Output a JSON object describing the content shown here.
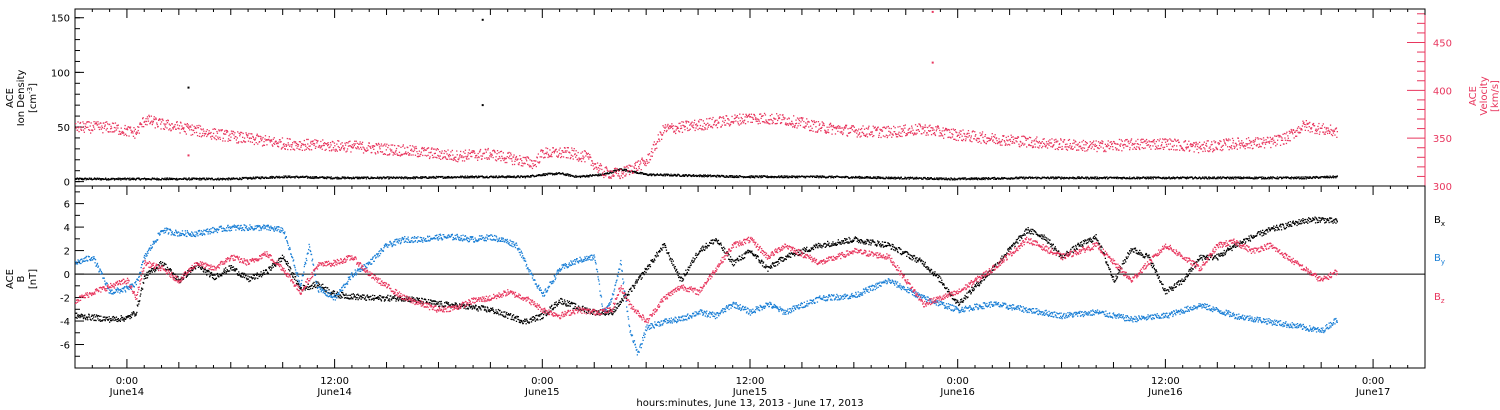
{
  "figure": {
    "xlabel": "hours:minutes, June 13, 2013 - June 17, 2013",
    "x_ticks": [
      {
        "t": 0,
        "time": "0:00",
        "date": "June14"
      },
      {
        "t": 12,
        "time": "12:00",
        "date": "June14"
      },
      {
        "t": 24,
        "time": "0:00",
        "date": "June15"
      },
      {
        "t": 36,
        "time": "12:00",
        "date": "June15"
      },
      {
        "t": 48,
        "time": "0:00",
        "date": "June16"
      },
      {
        "t": 60,
        "time": "12:00",
        "date": "June16"
      },
      {
        "t": 72,
        "time": "0:00",
        "date": "June17"
      }
    ]
  },
  "chart_data": [
    {
      "type": "scatter",
      "panel": "top",
      "xlim": [
        -3,
        75
      ],
      "left_axis": {
        "label_lines": [
          "ACE",
          "Ion Density"
        ],
        "unit_base": "[cm",
        "unit_sup": "-3",
        "unit_end": "]",
        "ylim": [
          -4,
          158
        ],
        "ticks": [
          0,
          50,
          100,
          150
        ],
        "color": "#000000"
      },
      "right_axis": {
        "label_lines": [
          "ACE",
          "Velocity"
        ],
        "unit": "[km/s]",
        "ylim": [
          300,
          485
        ],
        "ticks": [
          300,
          350,
          400,
          450
        ],
        "color": "#e8365e"
      },
      "series": [
        {
          "id": "density",
          "axis": "left",
          "color": "#000000",
          "x": [
            -3,
            2,
            6,
            9,
            12,
            16,
            20,
            23,
            24,
            25,
            26,
            27.5,
            28.5,
            30,
            33,
            36,
            40,
            44,
            48,
            52,
            56,
            60,
            64,
            68,
            69.9
          ],
          "y": [
            3,
            3,
            3,
            5,
            4,
            4,
            5,
            5,
            7,
            8,
            5,
            7,
            12,
            7,
            6,
            5,
            5,
            4,
            3,
            4,
            4,
            4,
            4,
            4,
            5
          ],
          "outliers": [
            {
              "x": 20.5,
              "y": 149
            },
            {
              "x": 3.5,
              "y": 87
            },
            {
              "x": 20.5,
              "y": 71
            }
          ]
        },
        {
          "id": "velocity",
          "axis": "right",
          "color": "#e8365e",
          "x": [
            -3,
            -1,
            0.5,
            1,
            2,
            3,
            5,
            7,
            9,
            11,
            13,
            15,
            17,
            19,
            21,
            22,
            23.5,
            24,
            25.5,
            26.5,
            27.5,
            28.5,
            29,
            30,
            31,
            32,
            34,
            36,
            38,
            40,
            42,
            44,
            46,
            48,
            50,
            52,
            54,
            56,
            58,
            60,
            62,
            64,
            66,
            67,
            68,
            69,
            69.9
          ],
          "y": [
            362,
            362,
            356,
            370,
            365,
            362,
            355,
            350,
            345,
            343,
            342,
            339,
            336,
            332,
            334,
            330,
            324,
            335,
            335,
            331,
            315,
            313,
            318,
            326,
            360,
            362,
            367,
            372,
            370,
            362,
            358,
            357,
            360,
            354,
            350,
            347,
            344,
            342,
            344,
            345,
            341,
            345,
            346,
            351,
            364,
            360,
            357
          ],
          "outliers": [
            {
              "x": 46.5,
              "y": 483
            },
            {
              "x": 46.5,
              "y": 430
            },
            {
              "x": 3.5,
              "y": 333
            }
          ]
        }
      ]
    },
    {
      "type": "scatter",
      "panel": "bottom",
      "xlim": [
        -3,
        75
      ],
      "left_axis": {
        "label_lines": [
          "ACE",
          "B"
        ],
        "unit": "[nT]",
        "ylim": [
          -8,
          7.5
        ],
        "ticks": [
          -6,
          -4,
          -2,
          0,
          2,
          4,
          6
        ],
        "color": "#000000"
      },
      "zero_line": true,
      "series": [
        {
          "id": "bx",
          "name": "B",
          "subscript": "x",
          "color": "#000000",
          "x": [
            -3,
            -1,
            0,
            0.5,
            1,
            2,
            3,
            4,
            5,
            6,
            7,
            8,
            9,
            10,
            11,
            12,
            14,
            16,
            18,
            20,
            21,
            22,
            23,
            24,
            25,
            26,
            27,
            28,
            29,
            30,
            31,
            32,
            33,
            34,
            35,
            36,
            37,
            38,
            40,
            42,
            44,
            46,
            47,
            48,
            49,
            50,
            51,
            52,
            53,
            54,
            55,
            56,
            57,
            58,
            59,
            60,
            61,
            62,
            63,
            64,
            65,
            66,
            67,
            68,
            69,
            69.9
          ],
          "y": [
            -3.5,
            -3.8,
            -3.7,
            -3.2,
            -0.2,
            1,
            -0.5,
            0.8,
            -0.2,
            0.6,
            -0.4,
            0.2,
            1.5,
            -1.2,
            -0.8,
            -1.7,
            -2,
            -2,
            -2.5,
            -2.8,
            -3,
            -3.5,
            -4,
            -3.5,
            -2.2,
            -2.8,
            -3.2,
            -3.2,
            -1.5,
            0.5,
            2.5,
            -0.5,
            2,
            3,
            1,
            2,
            0.5,
            1.5,
            2.5,
            3,
            2.5,
            1,
            -0.5,
            -2.5,
            -1,
            0.5,
            2.2,
            3.8,
            3.2,
            1.5,
            2.5,
            3.2,
            -0.5,
            2.2,
            1.5,
            -1.5,
            -0.5,
            1.5,
            1.5,
            2.5,
            3.2,
            3.8,
            4.2,
            4.6,
            4.7,
            4.5
          ]
        },
        {
          "id": "by",
          "name": "B",
          "subscript": "y",
          "color": "#1a7fd6",
          "x": [
            -3,
            -2,
            -1,
            0,
            0.5,
            1,
            2,
            3,
            4,
            5,
            6,
            7,
            8,
            9,
            9.5,
            10,
            10.5,
            11,
            12,
            13,
            14,
            15,
            16,
            17,
            18,
            19,
            20,
            21,
            22,
            22.5,
            23,
            24,
            25,
            26,
            27,
            27.5,
            28,
            28.5,
            29,
            29.5,
            30,
            31,
            32,
            33,
            34,
            35,
            36,
            37,
            38,
            40,
            42,
            44,
            46,
            48,
            50,
            52,
            54,
            56,
            58,
            60,
            62,
            64,
            66,
            68,
            69,
            69.9
          ],
          "y": [
            1,
            1.5,
            -1.5,
            -1.2,
            -0.8,
            1.5,
            3.8,
            3.5,
            3.5,
            3.8,
            4,
            4,
            4,
            3.8,
            1.5,
            -1,
            2.5,
            -1.2,
            -2,
            0,
            1,
            2.5,
            3,
            3,
            3.2,
            3.2,
            3,
            3.2,
            2.8,
            2.5,
            1,
            -1.8,
            0.5,
            1.2,
            1.5,
            -3.2,
            -2,
            1,
            -4.5,
            -6.8,
            -4.5,
            -4,
            -3.8,
            -3.2,
            -3.5,
            -2.5,
            -3.2,
            -2.5,
            -3.2,
            -2,
            -1.8,
            -0.5,
            -2,
            -3,
            -2.5,
            -3,
            -3.5,
            -3.2,
            -3.8,
            -3.5,
            -2.6,
            -3.5,
            -4,
            -4.5,
            -4.8,
            -3.8
          ]
        },
        {
          "id": "bz",
          "name": "B",
          "subscript": "z",
          "color": "#e8365e",
          "x": [
            -3,
            -2,
            -1,
            0,
            0.5,
            1,
            2,
            3,
            4,
            5,
            6,
            7,
            8,
            9,
            10,
            11,
            12,
            13,
            14,
            15,
            16,
            17,
            18,
            19,
            20,
            21,
            22,
            23,
            24,
            25,
            26,
            27,
            28,
            28.5,
            29,
            30,
            31,
            32,
            33,
            34,
            35,
            36,
            37,
            38,
            40,
            42,
            44,
            46,
            48,
            50,
            52,
            54,
            56,
            58,
            60,
            62,
            63,
            64,
            65,
            66,
            67,
            68,
            69,
            69.9
          ],
          "y": [
            -2.2,
            -1.5,
            -1,
            -0.5,
            -2,
            1,
            0.5,
            -0.5,
            1,
            0.5,
            1.5,
            1,
            1.8,
            0.5,
            -1.5,
            0.8,
            1,
            1.5,
            0,
            -1,
            -2,
            -2.5,
            -3,
            -2.8,
            -2.2,
            -2,
            -1.5,
            -2,
            -3,
            -3.5,
            -3,
            -3.2,
            -3,
            -1,
            -2.5,
            -4,
            -2,
            -1,
            -1.5,
            0.5,
            2.5,
            3,
            1.5,
            2.5,
            1,
            2,
            1.5,
            -2.5,
            -1.5,
            0.5,
            3,
            1.5,
            2.5,
            -0.5,
            2.5,
            0.5,
            2.5,
            2.8,
            2,
            2.5,
            1.5,
            0.5,
            -0.5,
            0.3
          ]
        }
      ]
    }
  ]
}
